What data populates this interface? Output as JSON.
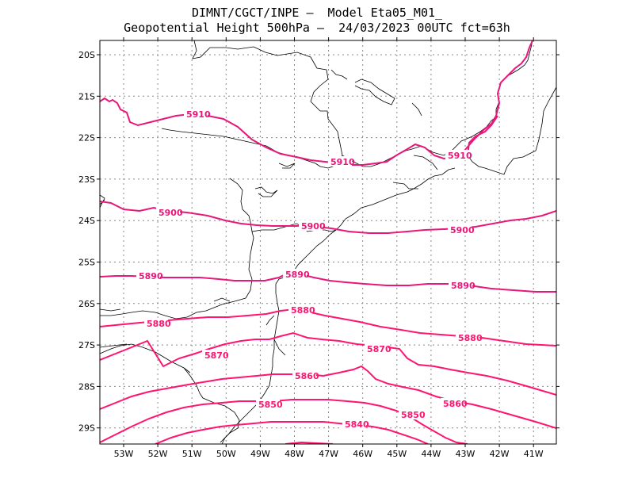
{
  "header": {
    "line1": "DIMNT/CGCT/INPE —  Model Eta05_M01_",
    "line2": "Geopotential Height 500hPa —  24/03/2023 00UTC fct=63h"
  },
  "colors": {
    "contour": "#ff1470",
    "contour_alt": "#e8177a",
    "coast": "#000000",
    "grid": "#888888"
  },
  "axes": {
    "lat_labels": [
      "20S",
      "21S",
      "22S",
      "23S",
      "24S",
      "25S",
      "26S",
      "27S",
      "28S",
      "29S"
    ],
    "lon_labels": [
      "53W",
      "52W",
      "51W",
      "50W",
      "49W",
      "48W",
      "47W",
      "46W",
      "45W",
      "44W",
      "43W",
      "42W",
      "41W"
    ]
  },
  "contour_labels": [
    {
      "text": "5910",
      "id": "a"
    },
    {
      "text": "5910",
      "id": "b"
    },
    {
      "text": "5910",
      "id": "c"
    },
    {
      "text": "5900",
      "id": "d"
    },
    {
      "text": "5900",
      "id": "e"
    },
    {
      "text": "5900",
      "id": "f"
    },
    {
      "text": "5890",
      "id": "g"
    },
    {
      "text": "5890",
      "id": "h"
    },
    {
      "text": "5890",
      "id": "i"
    },
    {
      "text": "5880",
      "id": "j"
    },
    {
      "text": "5880",
      "id": "k"
    },
    {
      "text": "5880",
      "id": "l"
    },
    {
      "text": "5870",
      "id": "m"
    },
    {
      "text": "5870",
      "id": "n"
    },
    {
      "text": "5860",
      "id": "o"
    },
    {
      "text": "5860",
      "id": "p"
    },
    {
      "text": "5850",
      "id": "q"
    },
    {
      "text": "5850",
      "id": "r"
    },
    {
      "text": "5840",
      "id": "s"
    }
  ]
}
